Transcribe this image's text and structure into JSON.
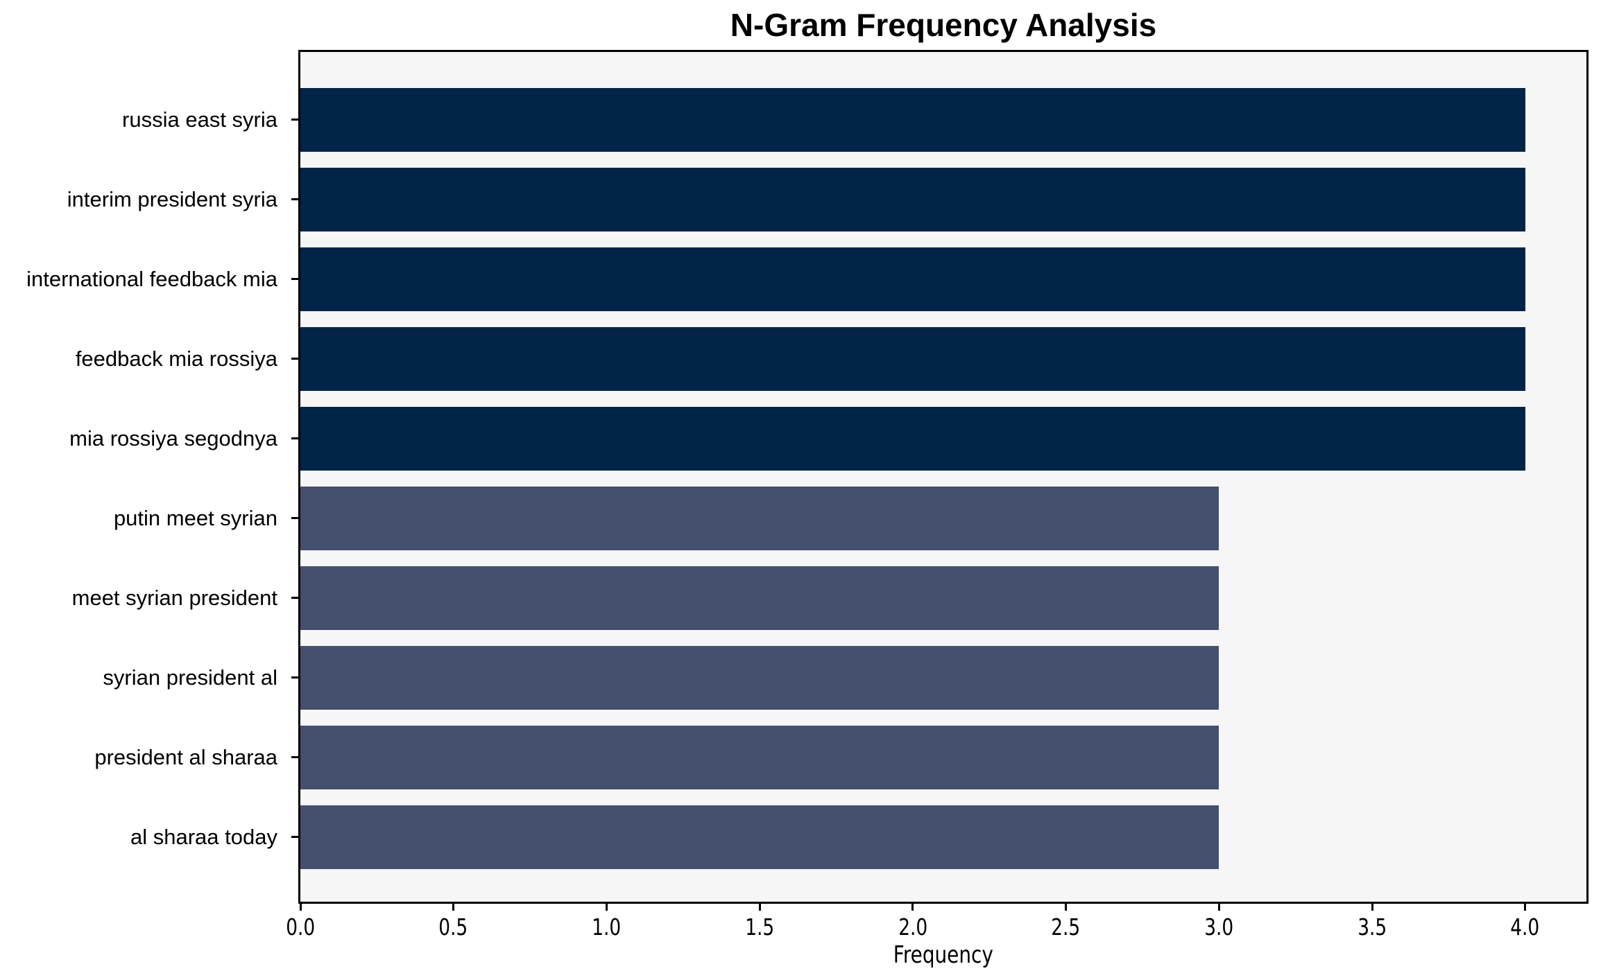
{
  "title": "N-Gram Frequency Analysis",
  "chart_data": {
    "type": "bar",
    "orientation": "horizontal",
    "title": "N-Gram Frequency Analysis",
    "xlabel": "Frequency",
    "ylabel": "",
    "categories": [
      "russia east syria",
      "interim president syria",
      "international feedback mia",
      "feedback mia rossiya",
      "mia rossiya segodnya",
      "putin meet syrian",
      "meet syrian president",
      "syrian president al",
      "president al sharaa",
      "al sharaa today"
    ],
    "values": [
      4,
      4,
      4,
      4,
      4,
      3,
      3,
      3,
      3,
      3
    ],
    "bar_colors": [
      "#022449",
      "#022449",
      "#022449",
      "#022449",
      "#022449",
      "#454f6e",
      "#454f6e",
      "#454f6e",
      "#454f6e",
      "#454f6e"
    ],
    "xlim": [
      0,
      4.2
    ],
    "xticks": [
      0.0,
      0.5,
      1.0,
      1.5,
      2.0,
      2.5,
      3.0,
      3.5,
      4.0
    ],
    "xtick_labels": [
      "0.0",
      "0.5",
      "1.0",
      "1.5",
      "2.0",
      "2.5",
      "3.0",
      "3.5",
      "4.0"
    ],
    "grid": false,
    "legend": "none",
    "colors": {
      "bar_high": "#022449",
      "bar_low": "#454f6e",
      "plot_background": "#f5f6f5",
      "figure_background": "#ffffff",
      "axis": "#000000",
      "text": "#000000"
    }
  }
}
